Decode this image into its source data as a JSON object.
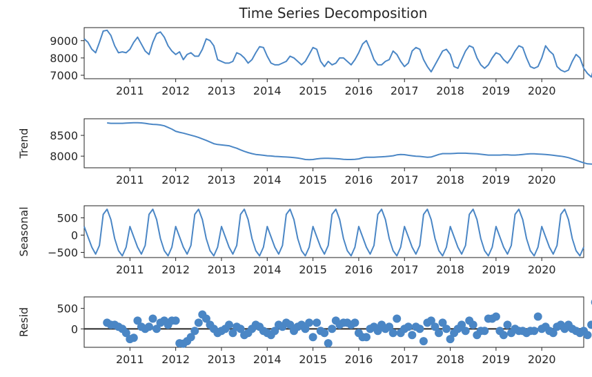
{
  "chart_data": {
    "type": "line",
    "title": "Time Series Decomposition",
    "x_range": [
      "2010-01",
      "2020-12"
    ],
    "x_ticks": [
      "2011",
      "2012",
      "2013",
      "2014",
      "2015",
      "2016",
      "2017",
      "2018",
      "2019",
      "2020"
    ],
    "color": "#4a86c5",
    "zero_line_color": "#333333",
    "panels": [
      {
        "name": "observed",
        "type": "line",
        "ylabel": "",
        "ylim": [
          6800,
          9750
        ],
        "yticks": [
          7000,
          8000,
          9000
        ],
        "ytick_labels": [
          "7000",
          "8000",
          "9000"
        ],
        "start": "2010-01",
        "values": [
          9100,
          8900,
          8500,
          8300,
          8900,
          9550,
          9600,
          9300,
          8700,
          8300,
          8350,
          8300,
          8500,
          8900,
          9200,
          8800,
          8400,
          8200,
          8900,
          9400,
          9500,
          9200,
          8700,
          8400,
          8200,
          8350,
          7900,
          8200,
          8300,
          8100,
          8100,
          8500,
          9100,
          9000,
          8700,
          7900,
          7800,
          7700,
          7700,
          7800,
          8300,
          8200,
          8000,
          7700,
          7900,
          8300,
          8650,
          8600,
          8100,
          7700,
          7600,
          7600,
          7700,
          7800,
          8100,
          8000,
          7800,
          7600,
          7800,
          8200,
          8600,
          8500,
          7800,
          7500,
          7800,
          7600,
          7700,
          8000,
          8000,
          7800,
          7600,
          7900,
          8300,
          8800,
          9000,
          8500,
          7900,
          7600,
          7600,
          7800,
          7900,
          8400,
          8200,
          7800,
          7500,
          7700,
          8400,
          8600,
          8500,
          7900,
          7500,
          7200,
          7600,
          8000,
          8400,
          8500,
          8200,
          7500,
          7400,
          7900,
          8400,
          8700,
          8600,
          8000,
          7600,
          7400,
          7600,
          8000,
          8300,
          8200,
          7900,
          7700,
          8000,
          8400,
          8700,
          8600,
          8000,
          7500,
          7400,
          7500,
          8000,
          8700,
          8400,
          8200,
          7500,
          7300,
          7200,
          7300,
          7800,
          8200,
          8000,
          7400,
          7100,
          6900,
          7700,
          8200,
          8600,
          8500,
          8100,
          7200,
          7000,
          7200,
          7200,
          7100
        ]
      },
      {
        "name": "trend",
        "type": "line",
        "ylabel": "Trend",
        "ylim": [
          7720,
          8900
        ],
        "yticks": [
          8000,
          8500
        ],
        "ytick_labels": [
          "8000",
          "8500"
        ],
        "start": "2010-07",
        "values": [
          8800,
          8790,
          8790,
          8790,
          8790,
          8795,
          8800,
          8805,
          8805,
          8800,
          8790,
          8775,
          8765,
          8760,
          8750,
          8730,
          8690,
          8650,
          8600,
          8575,
          8555,
          8530,
          8505,
          8480,
          8450,
          8415,
          8380,
          8340,
          8300,
          8280,
          8270,
          8260,
          8250,
          8220,
          8190,
          8150,
          8115,
          8085,
          8060,
          8040,
          8030,
          8020,
          8010,
          8005,
          7995,
          7990,
          7985,
          7980,
          7975,
          7965,
          7955,
          7940,
          7920,
          7915,
          7920,
          7935,
          7945,
          7950,
          7950,
          7945,
          7940,
          7935,
          7925,
          7920,
          7920,
          7925,
          7935,
          7960,
          7975,
          7975,
          7975,
          7980,
          7985,
          7990,
          8000,
          8010,
          8030,
          8040,
          8035,
          8020,
          8010,
          8000,
          7995,
          7985,
          7975,
          7980,
          8010,
          8040,
          8060,
          8060,
          8060,
          8065,
          8070,
          8070,
          8070,
          8065,
          8060,
          8055,
          8045,
          8035,
          8025,
          8025,
          8025,
          8025,
          8030,
          8030,
          8025,
          8025,
          8030,
          8040,
          8050,
          8055,
          8055,
          8050,
          8045,
          8040,
          8030,
          8020,
          8010,
          8000,
          7985,
          7965,
          7935,
          7905,
          7870,
          7840,
          7815,
          7810,
          7810,
          7805,
          7800,
          7790,
          7770,
          7755,
          7740
        ]
      },
      {
        "name": "seasonal",
        "type": "line",
        "ylabel": "Seasonal",
        "ylim": [
          -650,
          850
        ],
        "yticks": [
          -500,
          0,
          500
        ],
        "ytick_labels": [
          "−500",
          "0",
          "500"
        ],
        "start": "2010-01",
        "pattern": [
          250,
          -50,
          -350,
          -550,
          -300,
          600,
          750,
          450,
          -100,
          -450,
          -600,
          -350
        ]
      },
      {
        "name": "resid",
        "type": "scatter",
        "ylabel": "Resid",
        "ylim": [
          -450,
          780
        ],
        "yticks": [
          0,
          500
        ],
        "ytick_labels": [
          "0",
          "500"
        ],
        "start": "2010-07",
        "values": [
          150,
          100,
          100,
          50,
          0,
          -100,
          -250,
          -220,
          200,
          50,
          0,
          50,
          250,
          0,
          150,
          200,
          100,
          200,
          200,
          -350,
          -360,
          -300,
          -200,
          -50,
          150,
          350,
          250,
          100,
          0,
          -100,
          -50,
          0,
          100,
          -100,
          50,
          0,
          -150,
          -100,
          0,
          100,
          50,
          -50,
          -100,
          -150,
          -50,
          100,
          50,
          150,
          100,
          -50,
          50,
          100,
          0,
          150,
          -200,
          150,
          -50,
          -100,
          -350,
          0,
          200,
          100,
          150,
          150,
          100,
          150,
          -100,
          -200,
          -200,
          0,
          50,
          -50,
          100,
          0,
          50,
          -100,
          250,
          -100,
          0,
          50,
          -150,
          50,
          0,
          -300,
          150,
          200,
          50,
          -100,
          150,
          0,
          -250,
          -100,
          0,
          100,
          -50,
          200,
          100,
          -150,
          -50,
          -50,
          250,
          250,
          300,
          -50,
          -150,
          100,
          -100,
          0,
          -50,
          -50,
          -100,
          -50,
          -50,
          300,
          0,
          50,
          -50,
          -100,
          50,
          100,
          0,
          100,
          0,
          -50,
          -100,
          -50,
          -150,
          100,
          650,
          0,
          -50,
          50,
          -100,
          0,
          -50,
          100,
          -50,
          150,
          100,
          200,
          -250,
          -250,
          0,
          50
        ]
      }
    ]
  }
}
